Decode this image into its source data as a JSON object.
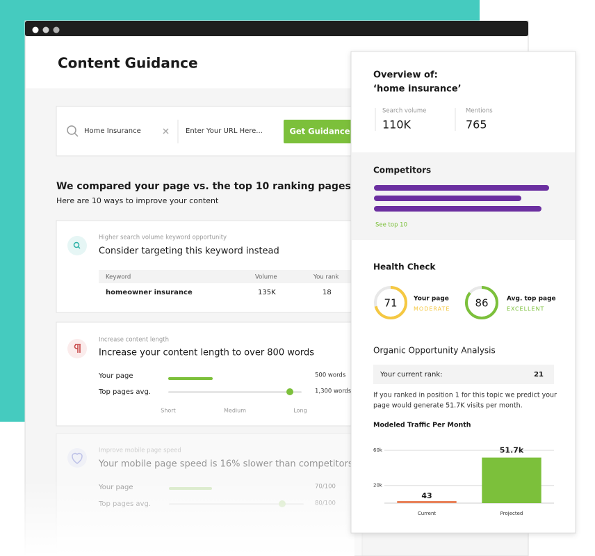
{
  "header": {
    "title": "Content Guidance"
  },
  "search": {
    "keyword": "Home Insurance",
    "url_placeholder": "Enter Your URL Here...",
    "button": "Get Guidance"
  },
  "comparison": {
    "title": "We compared your page vs. the top 10 ranking pages",
    "subtitle": "Here are 10 ways to improve your content"
  },
  "cards": [
    {
      "kicker": "Higher search volume keyword opportunity",
      "title": "Consider targeting this keyword instead",
      "table": {
        "columns": [
          "Keyword",
          "Volume",
          "You rank"
        ],
        "rows": [
          [
            "homeowner insurance",
            "135K",
            "18"
          ]
        ]
      }
    },
    {
      "kicker": "Increase content length",
      "title": "Increase your content length to over 800 words",
      "rows": [
        {
          "label": "Your page",
          "value": "500 words"
        },
        {
          "label": "Top pages avg.",
          "value": "1,300 words"
        }
      ],
      "scale": [
        "Short",
        "Medium",
        "Long"
      ]
    },
    {
      "kicker": "Improve mobile page speed",
      "title": "Your mobile page speed is 16% slower than competitors",
      "rows": [
        {
          "label": "Your page",
          "value": "70/100"
        },
        {
          "label": "Top pages avg.",
          "value": "80/100"
        }
      ]
    }
  ],
  "overview": {
    "title": "Overview of:",
    "keyword": "‘home insurance’",
    "stats": [
      {
        "label": "Search volume",
        "value": "110K"
      },
      {
        "label": "Mentions",
        "value": "765"
      }
    ]
  },
  "competitors": {
    "title": "Competitors",
    "link": "See top 10"
  },
  "health_check": {
    "title": "Health Check",
    "gauges": [
      {
        "score": 71,
        "label": "Your page",
        "status": "MODERATE",
        "color": "#f5c842"
      },
      {
        "score": 86,
        "label": "Avg. top page",
        "status": "EXCELLENT",
        "color": "#7cc03b"
      }
    ]
  },
  "opportunity": {
    "title": "Organic Opportunity Analysis",
    "rank_label": "Your current rank:",
    "rank": 21,
    "text": [
      "If you ranked in position 1 for this topic we predict your",
      "page would generate 51.7K visits per month."
    ]
  },
  "traffic_chart": {
    "type": "bar",
    "title": "Modeled Traffic Per Month",
    "categories": [
      "Current",
      "Projected"
    ],
    "values": [
      43,
      51700
    ],
    "value_labels": [
      "43",
      "51.7k"
    ],
    "colors": [
      "#e8825a",
      "#7cc03b"
    ],
    "ylim": [
      0,
      64000
    ],
    "yticks": [
      {
        "value": 20000,
        "label": "20k"
      },
      {
        "value": 60000,
        "label": "60k"
      }
    ],
    "grid": true
  }
}
